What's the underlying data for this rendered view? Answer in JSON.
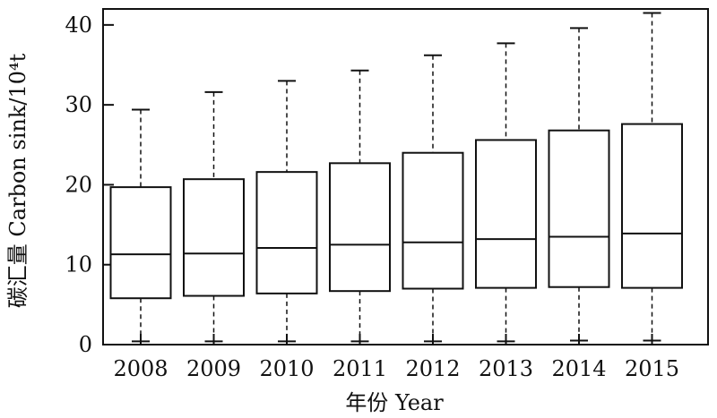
{
  "chart_data": {
    "type": "boxplot",
    "title": "",
    "xlabel": "年份 Year",
    "ylabel": "碳汇量 Carbon sink/10⁴t",
    "categories": [
      "2008",
      "2009",
      "2010",
      "2011",
      "2012",
      "2013",
      "2014",
      "2015"
    ],
    "ylim": [
      0,
      42
    ],
    "yticks": [
      0,
      10,
      20,
      30,
      40
    ],
    "grid": false,
    "legend": "none",
    "boxes": [
      {
        "category": "2008",
        "min": 0.4,
        "q1": 5.8,
        "median": 11.3,
        "q3": 19.7,
        "max": 29.4
      },
      {
        "category": "2009",
        "min": 0.4,
        "q1": 6.1,
        "median": 11.4,
        "q3": 20.7,
        "max": 31.6
      },
      {
        "category": "2010",
        "min": 0.4,
        "q1": 6.4,
        "median": 12.1,
        "q3": 21.6,
        "max": 33.0
      },
      {
        "category": "2011",
        "min": 0.4,
        "q1": 6.7,
        "median": 12.5,
        "q3": 22.7,
        "max": 34.3
      },
      {
        "category": "2012",
        "min": 0.4,
        "q1": 7.0,
        "median": 12.8,
        "q3": 24.0,
        "max": 36.2
      },
      {
        "category": "2013",
        "min": 0.4,
        "q1": 7.1,
        "median": 13.2,
        "q3": 25.6,
        "max": 37.7
      },
      {
        "category": "2014",
        "min": 0.5,
        "q1": 7.2,
        "median": 13.5,
        "q3": 26.8,
        "max": 39.6
      },
      {
        "category": "2015",
        "min": 0.5,
        "q1": 7.1,
        "median": 13.9,
        "q3": 27.6,
        "max": 41.5
      }
    ],
    "colors": {
      "stroke": "#111111",
      "background": "#ffffff"
    }
  }
}
